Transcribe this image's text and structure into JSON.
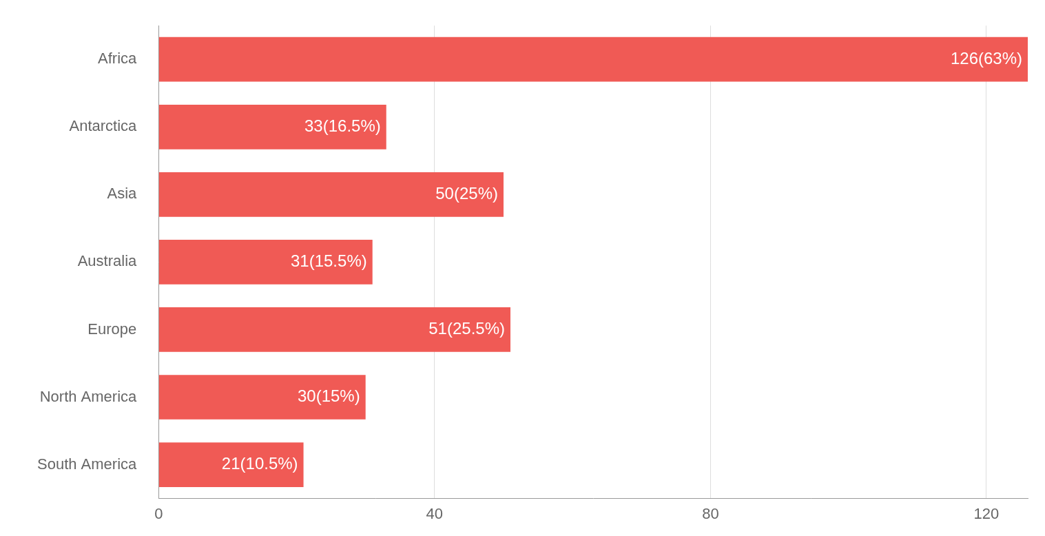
{
  "chart_data": {
    "type": "bar",
    "orientation": "horizontal",
    "categories": [
      "Africa",
      "Antarctica",
      "Asia",
      "Australia",
      "Europe",
      "North America",
      "South America"
    ],
    "values": [
      126,
      33,
      50,
      31,
      51,
      30,
      21
    ],
    "value_labels": [
      "126(63%)",
      "33(16.5%)",
      "50(25%)",
      "31(15.5%)",
      "51(25.5%)",
      "30(15%)",
      "21(10.5%)"
    ],
    "color": "#f05a55",
    "xlim": [
      0,
      126
    ],
    "xticks": [
      0,
      40,
      80,
      120
    ],
    "grid": true,
    "data_labels": true
  }
}
